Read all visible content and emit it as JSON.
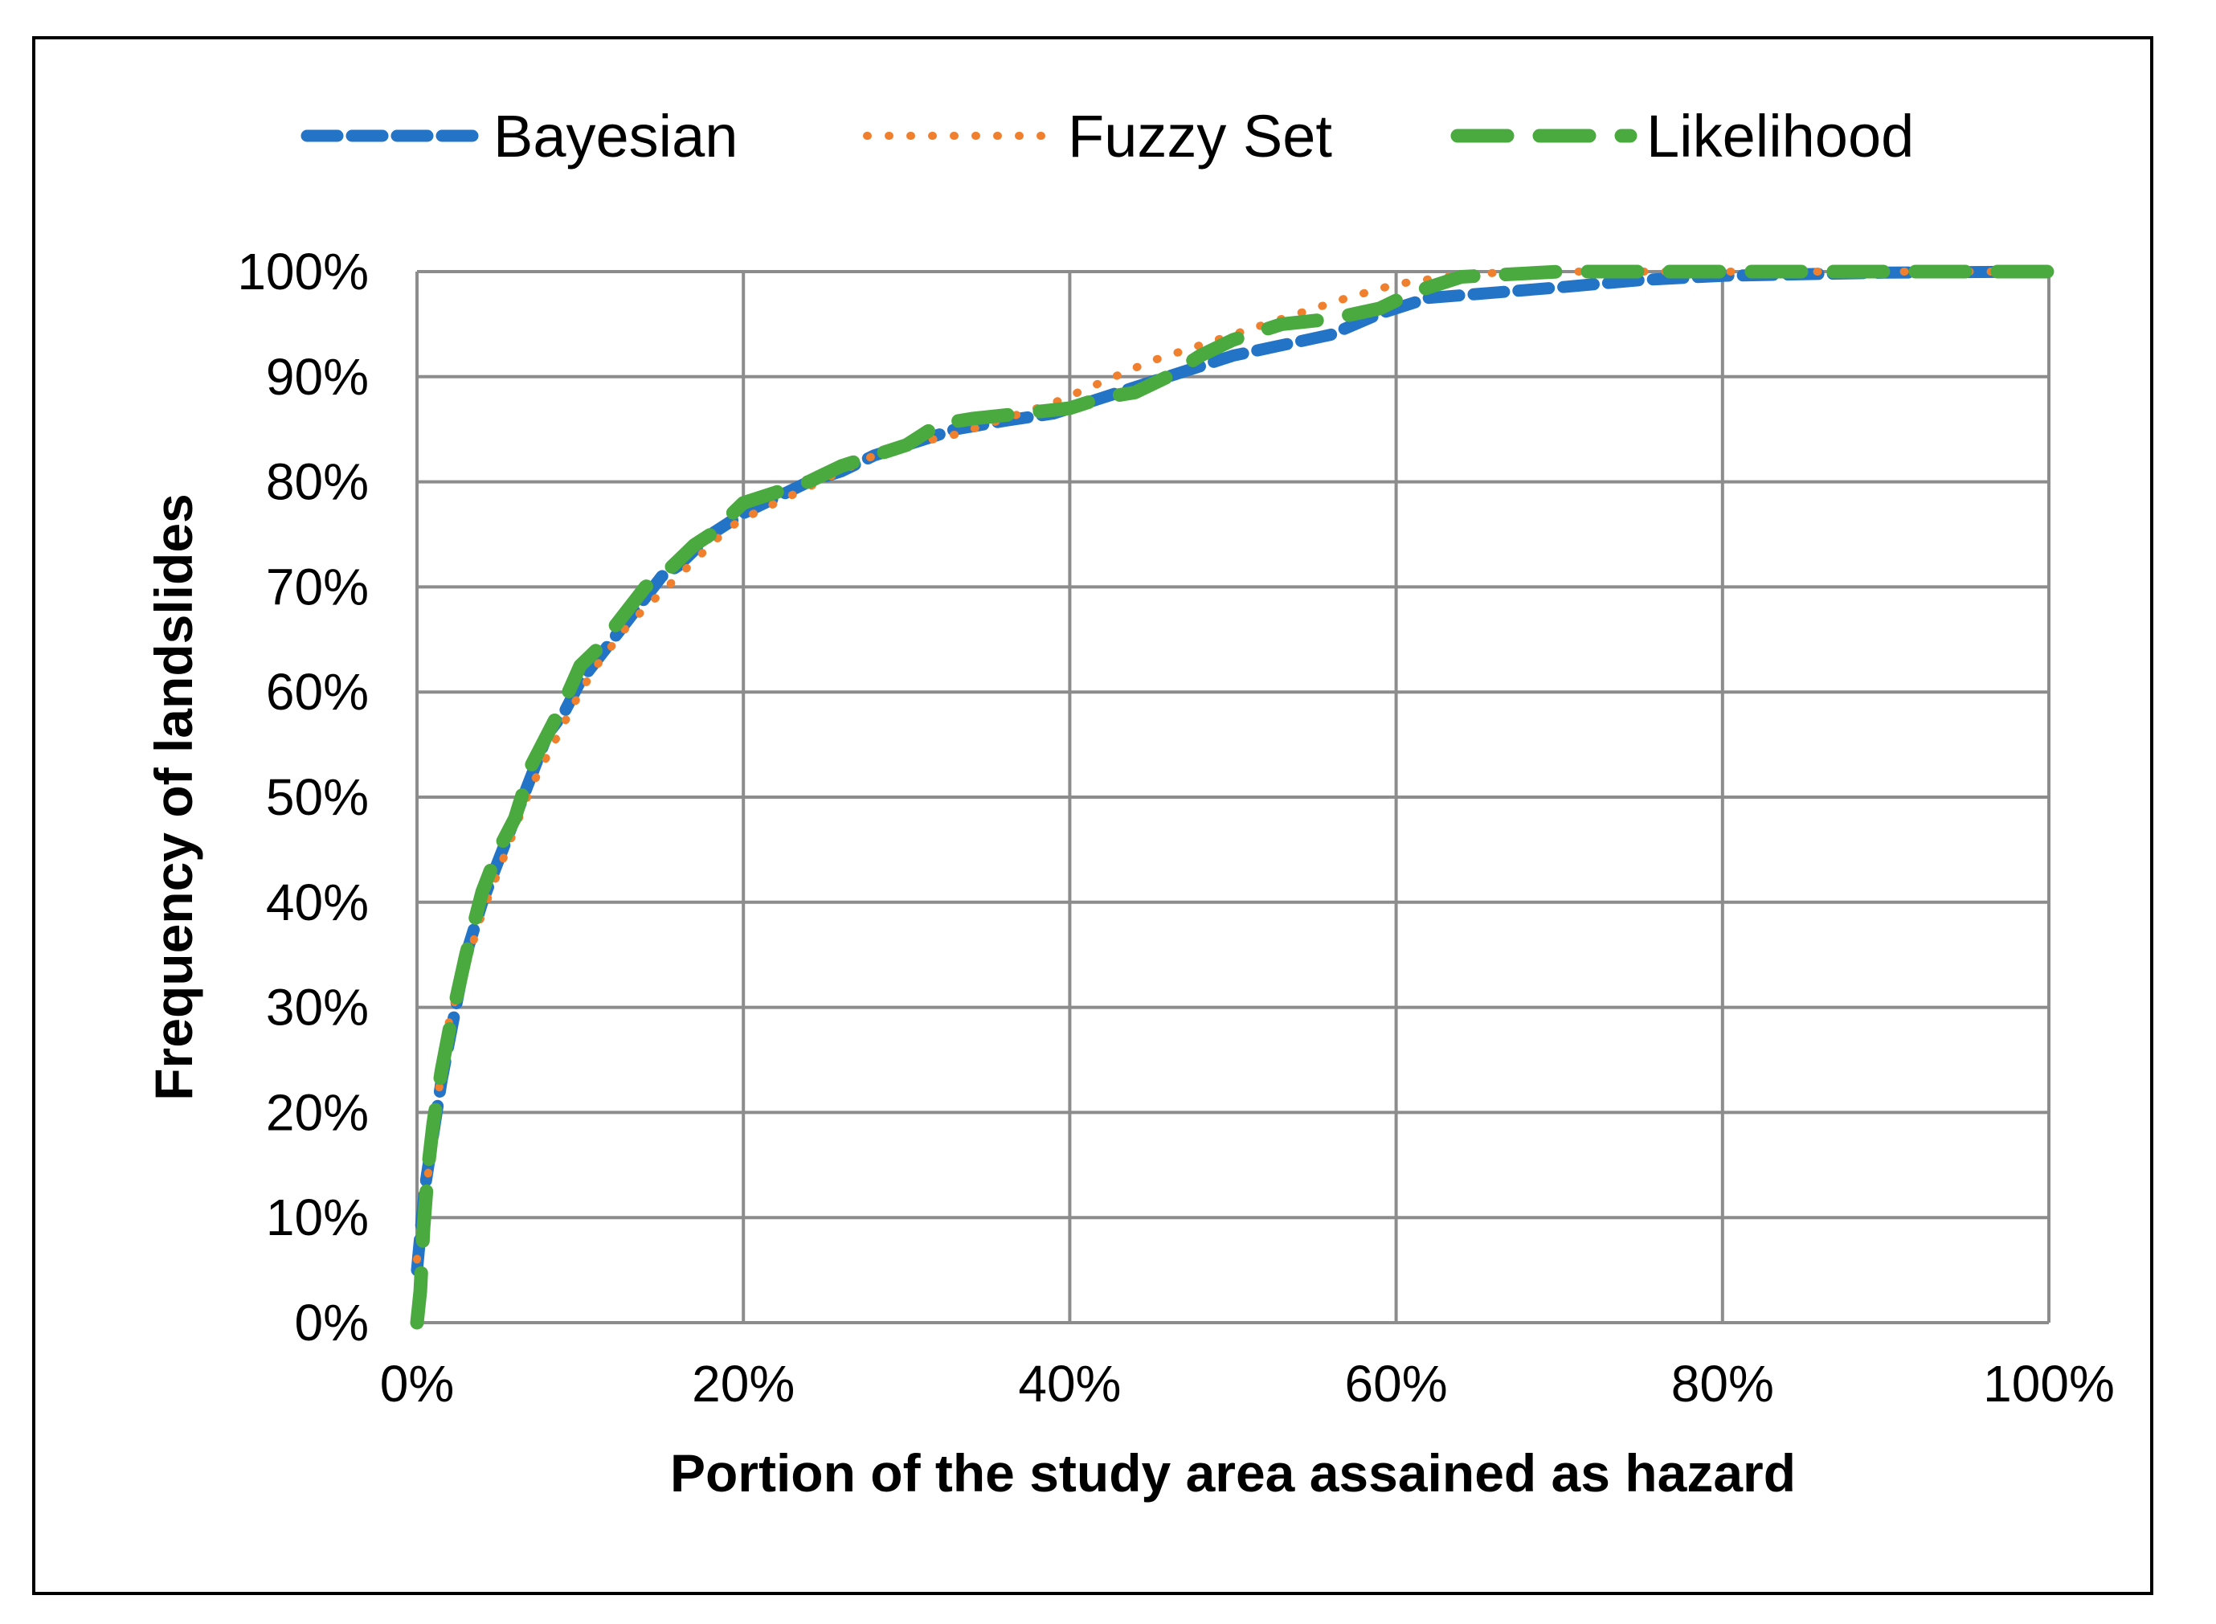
{
  "chart_data": {
    "type": "line",
    "xlabel": "Portion of the study area assained as hazard",
    "ylabel": "Frequency of landslides",
    "xlim": [
      0,
      100
    ],
    "ylim": [
      0,
      100
    ],
    "x_ticks": [
      "0%",
      "20%",
      "40%",
      "60%",
      "80%",
      "100%"
    ],
    "y_ticks": [
      "0%",
      "10%",
      "20%",
      "30%",
      "40%",
      "50%",
      "60%",
      "70%",
      "80%",
      "90%",
      "100%"
    ],
    "grid": true,
    "legend_position": "top",
    "series": [
      {
        "name": "Bayesian",
        "color": "#2374c6",
        "style": "dashed",
        "points": [
          [
            0,
            5
          ],
          [
            0.3,
            10
          ],
          [
            0.5,
            13
          ],
          [
            1,
            18
          ],
          [
            1.5,
            23
          ],
          [
            2,
            27
          ],
          [
            2.5,
            31
          ],
          [
            3,
            35
          ],
          [
            4,
            40
          ],
          [
            5,
            44
          ],
          [
            6,
            48
          ],
          [
            7,
            52
          ],
          [
            8,
            56
          ],
          [
            9,
            58
          ],
          [
            10,
            61
          ],
          [
            11,
            63
          ],
          [
            12,
            65
          ],
          [
            13,
            67
          ],
          [
            14,
            69
          ],
          [
            15,
            71
          ],
          [
            16,
            72
          ],
          [
            17,
            73.5
          ],
          [
            18,
            75
          ],
          [
            19,
            76
          ],
          [
            20,
            77
          ],
          [
            22,
            78.5
          ],
          [
            24,
            80
          ],
          [
            26,
            81
          ],
          [
            28,
            82.5
          ],
          [
            30,
            83.5
          ],
          [
            33,
            85
          ],
          [
            36,
            85.8
          ],
          [
            39,
            86.5
          ],
          [
            42,
            88
          ],
          [
            45,
            89.5
          ],
          [
            48,
            91
          ],
          [
            50,
            92
          ],
          [
            53,
            93
          ],
          [
            56,
            94
          ],
          [
            59,
            96
          ],
          [
            62,
            97.5
          ],
          [
            66,
            98
          ],
          [
            70,
            98.5
          ],
          [
            75,
            99.2
          ],
          [
            80,
            99.6
          ],
          [
            90,
            99.9
          ],
          [
            100,
            100
          ]
        ]
      },
      {
        "name": "Fuzzy Set",
        "color": "#f07f2e",
        "style": "dotted",
        "points": [
          [
            0,
            6
          ],
          [
            0.5,
            12
          ],
          [
            1,
            18
          ],
          [
            1.5,
            24
          ],
          [
            2,
            29
          ],
          [
            3,
            34
          ],
          [
            4,
            39
          ],
          [
            5,
            43
          ],
          [
            6,
            47
          ],
          [
            7,
            51
          ],
          [
            8,
            54
          ],
          [
            9,
            57
          ],
          [
            10,
            60
          ],
          [
            11,
            62.5
          ],
          [
            12,
            64.5
          ],
          [
            13,
            66.5
          ],
          [
            14,
            68
          ],
          [
            15,
            69.5
          ],
          [
            16,
            71
          ],
          [
            17,
            72.5
          ],
          [
            18,
            74
          ],
          [
            19,
            75.5
          ],
          [
            20,
            76.5
          ],
          [
            22,
            78
          ],
          [
            24,
            79.5
          ],
          [
            26,
            81
          ],
          [
            28,
            82.5
          ],
          [
            30,
            83.5
          ],
          [
            33,
            84.5
          ],
          [
            36,
            86
          ],
          [
            39,
            87.5
          ],
          [
            42,
            89.5
          ],
          [
            45,
            91.5
          ],
          [
            48,
            93
          ],
          [
            51,
            94.5
          ],
          [
            54,
            96
          ],
          [
            57,
            97.5
          ],
          [
            60,
            98.8
          ],
          [
            63,
            99.5
          ],
          [
            67,
            100
          ],
          [
            100,
            100
          ]
        ]
      },
      {
        "name": "Likelihood",
        "color": "#4aaa3f",
        "style": "long-dash",
        "points": [
          [
            0,
            0
          ],
          [
            0.2,
            3
          ],
          [
            0.4,
            9
          ],
          [
            0.7,
            15
          ],
          [
            1,
            19
          ],
          [
            1.5,
            24
          ],
          [
            2,
            28
          ],
          [
            3,
            35
          ],
          [
            4,
            41
          ],
          [
            5,
            45
          ],
          [
            6,
            48
          ],
          [
            7,
            53
          ],
          [
            8,
            56
          ],
          [
            9,
            59
          ],
          [
            10,
            62.5
          ],
          [
            11,
            64
          ],
          [
            12,
            66
          ],
          [
            13,
            68
          ],
          [
            14,
            70
          ],
          [
            15,
            71
          ],
          [
            16,
            72.5
          ],
          [
            17,
            74
          ],
          [
            18,
            75
          ],
          [
            19,
            76.5
          ],
          [
            20,
            78
          ],
          [
            22,
            79
          ],
          [
            24,
            80
          ],
          [
            26,
            81.5
          ],
          [
            28,
            82.5
          ],
          [
            30,
            83.5
          ],
          [
            32,
            85.5
          ],
          [
            34,
            86
          ],
          [
            37,
            86.5
          ],
          [
            40,
            87
          ],
          [
            42,
            88
          ],
          [
            44,
            88.5
          ],
          [
            46,
            90
          ],
          [
            48,
            92
          ],
          [
            50,
            93.5
          ],
          [
            53,
            95
          ],
          [
            56,
            95.5
          ],
          [
            59,
            96.5
          ],
          [
            61,
            98
          ],
          [
            64,
            99.5
          ],
          [
            70,
            100
          ],
          [
            100,
            100
          ]
        ]
      }
    ]
  }
}
